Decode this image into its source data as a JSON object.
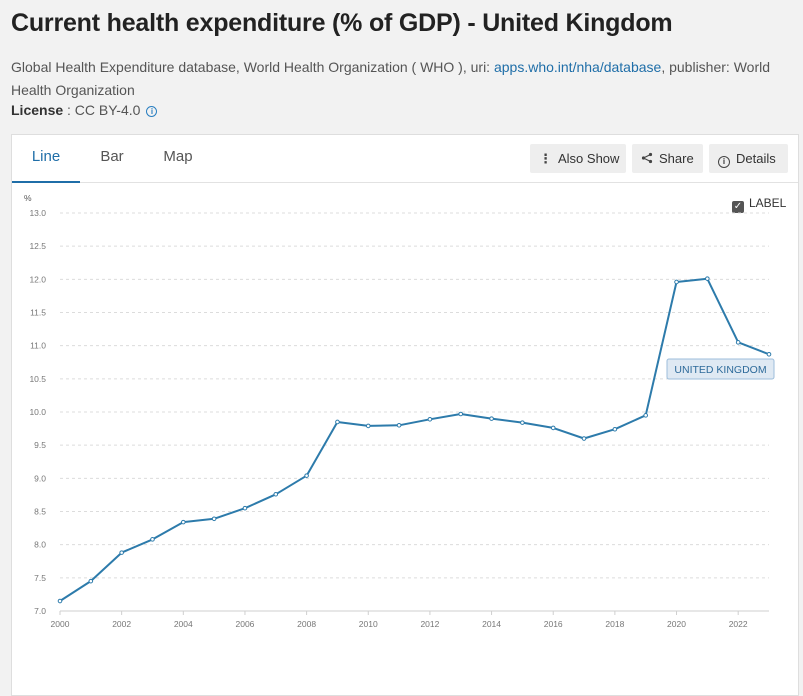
{
  "page": {
    "title": "Current health expenditure (% of GDP) - United Kingdom",
    "source_prefix": "Global Health Expenditure database, World Health Organization ( WHO ), uri: ",
    "source_link": "apps.who.int/nha/database",
    "source_suffix": ", publisher: World Health Organization",
    "license_label": "License",
    "license_value": " : CC BY-4.0"
  },
  "tabs": [
    {
      "label": "Line",
      "active": true
    },
    {
      "label": "Bar",
      "active": false
    },
    {
      "label": "Map",
      "active": false
    }
  ],
  "toolbar": {
    "also_show": "Also Show",
    "share": "Share",
    "details": "Details"
  },
  "label_toggle": {
    "text": "LABEL",
    "checked": true
  },
  "colors": {
    "series": "#2d7bab",
    "accent": "#1f6ea8"
  },
  "icons": {
    "also_show": "more-vertical-icon",
    "share": "share-icon",
    "details": "info-icon"
  },
  "chart_data": {
    "type": "line",
    "unit": "%",
    "xlim": [
      2000,
      2023
    ],
    "ylim": [
      7.0,
      13.0
    ],
    "x_ticks": [
      "2000",
      "2002",
      "2004",
      "2006",
      "2008",
      "2010",
      "2012",
      "2014",
      "2016",
      "2018",
      "2020",
      "2022"
    ],
    "y_ticks": [
      "7.0",
      "7.5",
      "8.0",
      "8.5",
      "9.0",
      "9.5",
      "10.0",
      "10.5",
      "11.0",
      "11.5",
      "12.0",
      "12.5",
      "13.0"
    ],
    "grid": true,
    "series": [
      {
        "name": "UNITED KINGDOM",
        "x": [
          2000,
          2001,
          2002,
          2003,
          2004,
          2005,
          2006,
          2007,
          2008,
          2009,
          2010,
          2011,
          2012,
          2013,
          2014,
          2015,
          2016,
          2017,
          2018,
          2019,
          2020,
          2021,
          2022,
          2023
        ],
        "values": [
          7.15,
          7.45,
          7.88,
          8.08,
          8.34,
          8.39,
          8.55,
          8.76,
          9.04,
          9.85,
          9.79,
          9.8,
          9.89,
          9.97,
          9.9,
          9.84,
          9.76,
          9.6,
          9.74,
          9.95,
          11.96,
          12.01,
          11.05,
          10.87
        ]
      }
    ]
  }
}
